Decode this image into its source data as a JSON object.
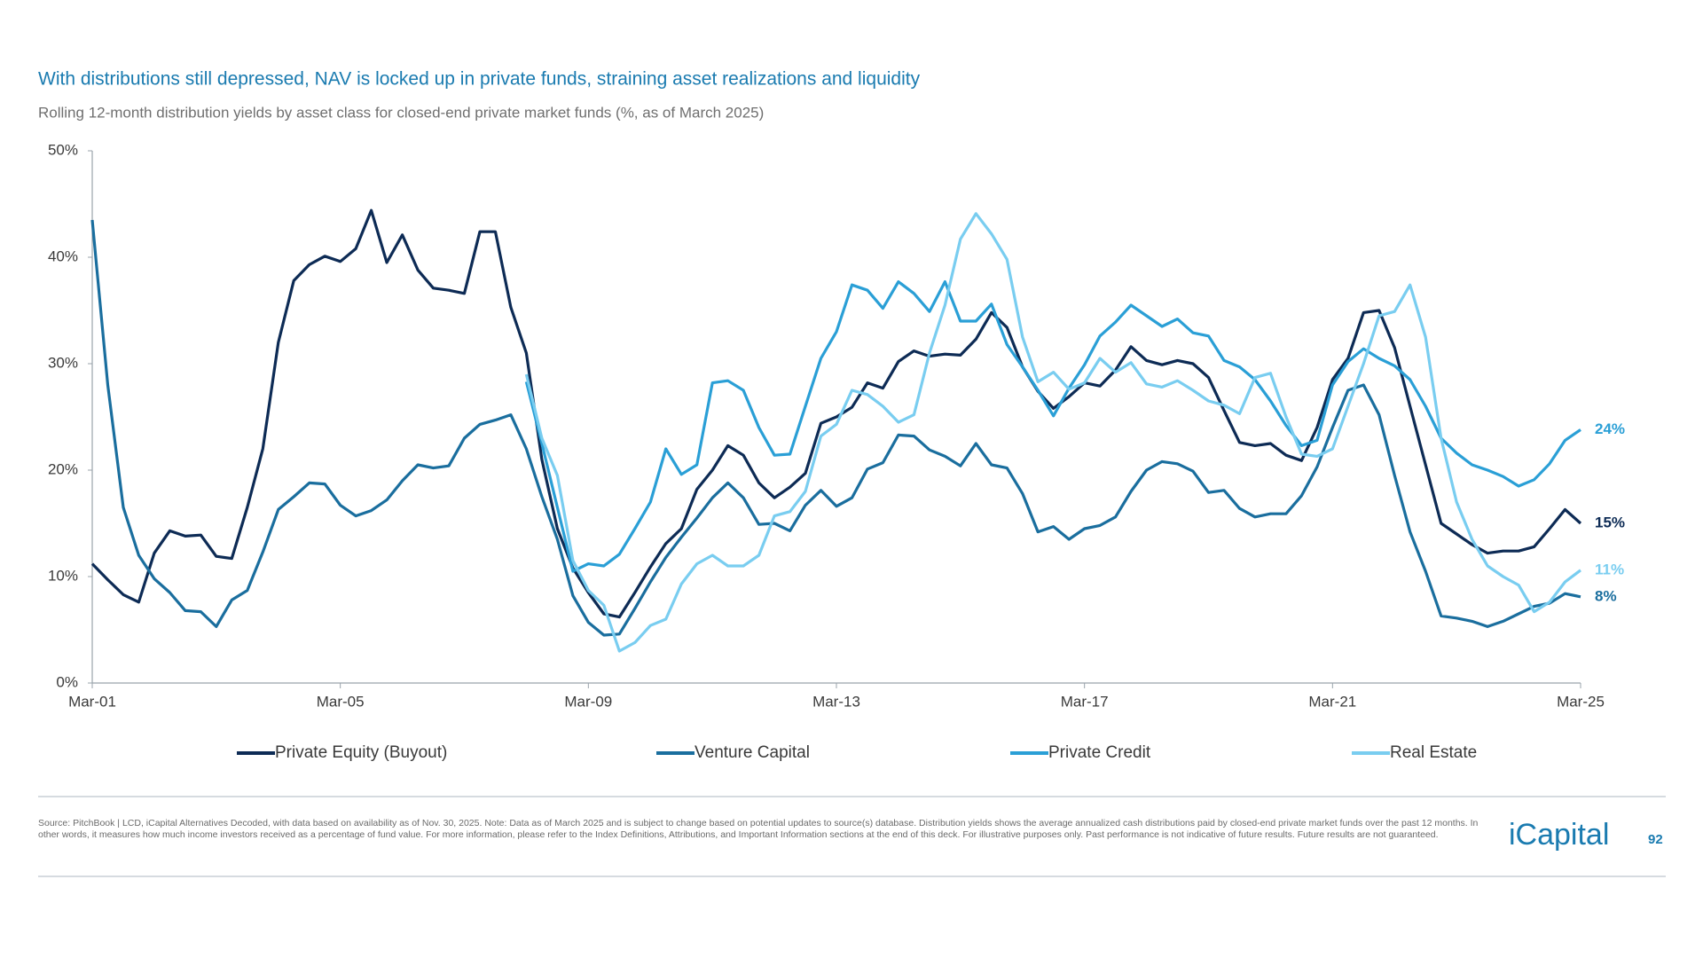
{
  "chart_data": {
    "type": "line",
    "title": "With distributions still depressed, NAV is locked up in private funds, straining asset realizations and liquidity",
    "subtitle": "Rolling 12-month distribution yields by asset class for closed-end private market funds (%, as of March 2025)",
    "categories": [
      "Mar-01",
      null,
      null,
      null,
      null,
      null,
      null,
      null,
      null,
      null,
      null,
      null,
      null,
      null,
      null,
      null,
      "Mar-05",
      null,
      null,
      null,
      null,
      null,
      null,
      null,
      null,
      null,
      null,
      null,
      null,
      null,
      null,
      null,
      "Mar-09",
      null,
      null,
      null,
      null,
      null,
      null,
      null,
      null,
      null,
      null,
      null,
      null,
      null,
      null,
      null,
      "Mar-13",
      null,
      null,
      null,
      null,
      null,
      null,
      null,
      null,
      null,
      null,
      null,
      null,
      null,
      null,
      null,
      "Mar-17",
      null,
      null,
      null,
      null,
      null,
      null,
      null,
      null,
      null,
      null,
      null,
      null,
      null,
      null,
      null,
      "Mar-21",
      null,
      null,
      null,
      null,
      null,
      null,
      null,
      null,
      null,
      null,
      null,
      null,
      null,
      null,
      null,
      "Mar-25"
    ],
    "ylim": [
      0,
      50
    ],
    "yticks": [
      {
        "value": 0,
        "label": "0%"
      },
      {
        "value": 10,
        "label": "10%"
      },
      {
        "value": 20,
        "label": "20%"
      },
      {
        "value": 30,
        "label": "30%"
      },
      {
        "value": 40,
        "label": "40%"
      },
      {
        "value": 50,
        "label": "50%"
      }
    ],
    "grid": false,
    "series": [
      {
        "name": "Private Equity (Buyout)",
        "color": "#0d2b55",
        "end_label": "15%",
        "values": [
          11.2,
          9.7,
          8.3,
          7.6,
          12.2,
          14.3,
          13.8,
          13.9,
          11.9,
          11.7,
          16.5,
          22,
          32,
          37.8,
          39.3,
          40.1,
          39.6,
          40.8,
          44.4,
          39.5,
          42.1,
          38.8,
          37.1,
          36.9,
          36.6,
          42.4,
          42.4,
          35.3,
          31,
          21,
          14.5,
          10.8,
          8.5,
          6.5,
          6.2,
          8.5,
          10.9,
          13.1,
          14.5,
          18.2,
          20,
          22.3,
          21.4,
          18.8,
          17.4,
          18.4,
          19.7,
          24.4,
          25,
          25.9,
          28.2,
          27.7,
          30.2,
          31.2,
          30.7,
          30.9,
          30.8,
          32.3,
          34.8,
          33.4,
          29.7,
          27.4,
          25.8,
          26.9,
          28.2,
          27.9,
          29.4,
          31.6,
          30.3,
          29.9,
          30.3,
          30,
          28.7,
          25.6,
          22.6,
          22.3,
          22.5,
          21.4,
          20.9,
          24,
          28.5,
          30.5,
          34.8,
          35,
          31.5,
          26,
          20.5,
          15,
          14,
          13,
          12.2,
          12.4,
          12.4,
          12.8,
          14.5,
          16.3,
          15
        ]
      },
      {
        "name": "Venture Capital",
        "color": "#1a6e9e",
        "end_label": "8%",
        "values": [
          43.5,
          28,
          16.5,
          12,
          9.8,
          8.5,
          6.8,
          6.7,
          5.3,
          7.8,
          8.7,
          12.3,
          16.3,
          17.5,
          18.8,
          18.7,
          16.7,
          15.7,
          16.2,
          17.2,
          19,
          20.5,
          20.2,
          20.4,
          23,
          24.3,
          24.7,
          25.2,
          22,
          17.5,
          13.5,
          8.2,
          5.7,
          4.5,
          4.6,
          7,
          9.5,
          11.8,
          13.7,
          15.5,
          17.4,
          18.8,
          17.4,
          14.9,
          15,
          14.3,
          16.7,
          18.1,
          16.6,
          17.4,
          20.1,
          20.7,
          23.3,
          23.2,
          21.9,
          21.3,
          20.4,
          22.5,
          20.5,
          20.2,
          17.8,
          14.2,
          14.7,
          13.5,
          14.5,
          14.8,
          15.6,
          18,
          20,
          20.8,
          20.6,
          19.9,
          17.9,
          18.1,
          16.4,
          15.6,
          15.9,
          15.9,
          17.6,
          20.3,
          24,
          27.5,
          28,
          25.2,
          19.5,
          14.2,
          10.5,
          6.3,
          6.1,
          5.8,
          5.3,
          5.8,
          6.5,
          7.2,
          7.5,
          8.4,
          8.1
        ]
      },
      {
        "name": "Private Credit",
        "color": "#2a9fd6",
        "end_label": "24%",
        "values": [
          null,
          null,
          null,
          null,
          null,
          null,
          null,
          null,
          null,
          null,
          null,
          null,
          null,
          null,
          null,
          null,
          null,
          null,
          null,
          null,
          null,
          null,
          null,
          null,
          null,
          null,
          null,
          null,
          28.3,
          22.5,
          16.5,
          10.5,
          11.2,
          11,
          12.1,
          14.5,
          17,
          22,
          19.6,
          20.5,
          28.2,
          28.4,
          27.5,
          24,
          21.4,
          21.5,
          26,
          30.5,
          33,
          37.4,
          36.9,
          35.2,
          37.7,
          36.6,
          34.9,
          37.7,
          34,
          34,
          35.6,
          31.8,
          29.7,
          27.5,
          25.1,
          27.7,
          29.9,
          32.6,
          33.9,
          35.5,
          34.5,
          33.5,
          34.2,
          32.9,
          32.6,
          30.3,
          29.7,
          28.5,
          26.5,
          24.2,
          22.3,
          22.8,
          28,
          30.2,
          31.4,
          30.5,
          29.8,
          28.5,
          26,
          23,
          21.6,
          20.5,
          20,
          19.4,
          18.5,
          19.1,
          20.6,
          22.8,
          23.8
        ]
      },
      {
        "name": "Real Estate",
        "color": "#79cdf0",
        "end_label": "11%",
        "values": [
          null,
          null,
          null,
          null,
          null,
          null,
          null,
          null,
          null,
          null,
          null,
          null,
          null,
          null,
          null,
          null,
          null,
          null,
          null,
          null,
          null,
          null,
          null,
          null,
          null,
          null,
          null,
          null,
          29,
          23,
          19.5,
          11.5,
          8.7,
          7.3,
          3,
          3.8,
          5.4,
          6,
          9.3,
          11.2,
          12,
          11,
          11,
          12,
          15.7,
          16.1,
          18,
          23.2,
          24.3,
          27.5,
          27.1,
          26,
          24.5,
          25.2,
          31,
          35.5,
          41.7,
          44.1,
          42.2,
          39.8,
          32.5,
          28.3,
          29.2,
          27.6,
          28.2,
          30.5,
          29.2,
          30.1,
          28.1,
          27.8,
          28.4,
          27.5,
          26.5,
          26.1,
          25.3,
          28.7,
          29.1,
          25,
          21.5,
          21.3,
          22,
          26,
          30,
          34.5,
          34.9,
          37.4,
          32.5,
          23,
          17,
          13.5,
          11,
          10,
          9.2,
          6.7,
          7.6,
          9.5,
          10.6
        ]
      }
    ]
  },
  "footer": {
    "source": "Source: PitchBook | LCD, iCapital Alternatives Decoded, with data based on availability as of Nov. 30, 2025. Note: Data as of March 2025 and is subject to change based on potential updates to source(s) database. Distribution yields shows the average annualized cash distributions paid by closed-end private market funds over the past 12 months. In other words, it measures how much income investors received as a percentage of fund value. For more information, please refer to the Index Definitions, Attributions, and Important Information sections at the end of this deck. For illustrative purposes only. Past performance is not indicative of future results. Future results are not guaranteed.",
    "logo": "iCapital",
    "page_number": "92"
  }
}
